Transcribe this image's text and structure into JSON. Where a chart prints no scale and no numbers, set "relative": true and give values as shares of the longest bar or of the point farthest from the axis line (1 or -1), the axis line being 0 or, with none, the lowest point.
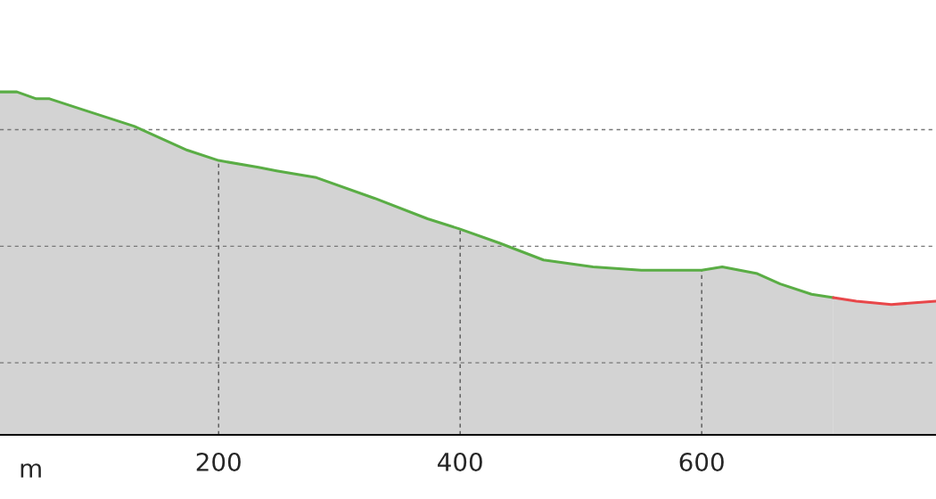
{
  "chart_data": {
    "type": "area",
    "relative": true,
    "xlabel": "m",
    "xlim": [
      19,
      794
    ],
    "xticks": [
      200,
      400,
      600
    ],
    "grid": "x",
    "series": [
      {
        "color": "#5aad45",
        "x": [
          19,
          33,
          49,
          60,
          86,
          130,
          174,
          200,
          233,
          248,
          281,
          329,
          373,
          400,
          432,
          469,
          510,
          550,
          600,
          617,
          646,
          665,
          691,
          709
        ],
        "values": [
          1.0,
          1.0,
          0.98,
          0.98,
          0.95,
          0.9,
          0.83,
          0.8,
          0.78,
          0.77,
          0.75,
          0.69,
          0.63,
          0.6,
          0.56,
          0.51,
          0.49,
          0.48,
          0.48,
          0.49,
          0.47,
          0.44,
          0.41,
          0.4
        ]
      },
      {
        "color": "#e8474a",
        "x": [
          709,
          728,
          757,
          794
        ],
        "values": [
          0.4,
          0.39,
          0.38,
          0.39
        ]
      }
    ],
    "ref_lines": [
      {
        "axis": "y",
        "value": 0.89,
        "line_style": "dashed",
        "color": "#777777"
      },
      {
        "axis": "y",
        "value": 0.55,
        "line_style": "dashed",
        "color": "#777777"
      },
      {
        "axis": "y",
        "value": 0.21,
        "line_style": "dashed",
        "color": "#777777"
      }
    ]
  }
}
